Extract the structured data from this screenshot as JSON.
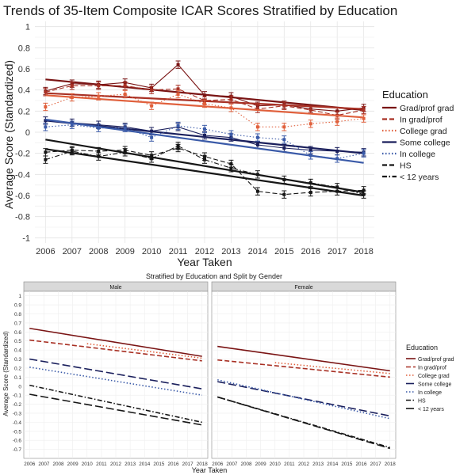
{
  "colors": {
    "grad_prof_grad": "#7a1414",
    "in_grad_prof": "#a83024",
    "college_grad": "#e0603c",
    "some_college": "#1a1f5c",
    "in_college": "#3a5aa8",
    "hs": "#161616",
    "lt12": "#161616"
  },
  "chart_data": [
    {
      "type": "line",
      "title": "Trends of 35-Item Composite ICAR Scores Stratified by Education",
      "xlabel": "Year Taken",
      "ylabel": "Average Score (Standardized)",
      "x": [
        2006,
        2007,
        2008,
        2009,
        2010,
        2011,
        2012,
        2013,
        2014,
        2015,
        2016,
        2017,
        2018
      ],
      "xlim": [
        2005.6,
        2018.4
      ],
      "ylim": [
        -1.05,
        1.05
      ],
      "yticks": [
        1,
        0.8,
        0.6,
        0.4,
        0.2,
        0,
        -0.2,
        -0.4,
        -0.6,
        -0.8,
        -1
      ],
      "yticklabels": [
        "1",
        "0.8",
        "0.6",
        "0.4",
        "0.2",
        "0",
        "-0.2",
        "-0.4",
        "-0.6",
        "-0.8",
        "-1"
      ],
      "grid": true,
      "legend": {
        "title": "Education",
        "position": "right",
        "entries": [
          "Grad/prof grad",
          "In grad/prof",
          "College grad",
          "Some college",
          "In college",
          "HS",
          "< 12 years"
        ]
      },
      "series": [
        {
          "name": "Grad/prof grad",
          "color_key": "grad_prof_grad",
          "dash": "solid",
          "values": [
            0.39,
            0.46,
            0.45,
            0.47,
            0.42,
            0.64,
            0.35,
            0.34,
            0.25,
            0.26,
            0.22,
            0.2,
            0.23
          ],
          "trend": [
            0.5,
            0.21
          ]
        },
        {
          "name": "In grad/prof",
          "color_key": "in_grad_prof",
          "dash": "dashed",
          "values": [
            0.38,
            0.44,
            0.44,
            0.44,
            0.4,
            0.41,
            0.3,
            0.31,
            0.22,
            0.25,
            0.21,
            0.16,
            0.21
          ],
          "trend": [
            0.37,
            0.22
          ]
        },
        {
          "name": "College grad",
          "color_key": "college_grad",
          "dash": "dotted",
          "values": [
            0.24,
            0.33,
            0.34,
            0.36,
            0.25,
            0.36,
            0.27,
            0.23,
            0.05,
            0.05,
            0.08,
            0.1,
            0.13
          ],
          "trend": [
            0.35,
            0.14
          ]
        },
        {
          "name": "Some college",
          "color_key": "some_college",
          "dash": "solid",
          "values": [
            0.11,
            0.09,
            0.07,
            0.05,
            0.01,
            0.05,
            -0.03,
            -0.05,
            -0.12,
            -0.15,
            -0.17,
            -0.18,
            -0.19
          ],
          "trend": [
            0.11,
            -0.2
          ]
        },
        {
          "name": "In college",
          "color_key": "in_college",
          "dash": "dotted",
          "values": [
            0.05,
            0.07,
            0.04,
            0.04,
            -0.05,
            0.06,
            0.03,
            -0.02,
            -0.05,
            -0.07,
            -0.22,
            -0.25,
            -0.2
          ],
          "trend": [
            0.12,
            -0.29
          ]
        },
        {
          "name": "HS",
          "color_key": "hs",
          "dash": "dashed",
          "values": [
            -0.19,
            -0.17,
            -0.18,
            -0.17,
            -0.22,
            -0.15,
            -0.23,
            -0.3,
            -0.56,
            -0.59,
            -0.57,
            -0.56,
            -0.55
          ],
          "trend": [
            -0.16,
            -0.6
          ]
        },
        {
          "name": "< 12 years",
          "color_key": "lt12",
          "dash": "dashdot",
          "values": [
            -0.26,
            -0.18,
            -0.23,
            -0.19,
            -0.25,
            -0.13,
            -0.26,
            -0.34,
            -0.4,
            -0.45,
            -0.48,
            -0.52,
            -0.59
          ],
          "trend": [
            -0.07,
            -0.57
          ]
        }
      ]
    },
    {
      "type": "line",
      "title": "Stratified by Education and Split by Gender",
      "xlabel": "Year Taken",
      "ylabel": "Average Score (Standardized)",
      "x": [
        2006,
        2007,
        2008,
        2009,
        2010,
        2011,
        2012,
        2013,
        2014,
        2015,
        2016,
        2017,
        2018
      ],
      "xlim": [
        2005.6,
        2018.4
      ],
      "ylim": [
        -0.8,
        1.05
      ],
      "yticks": [
        1,
        0.9,
        0.8,
        0.7,
        0.6,
        0.5,
        0.4,
        0.3,
        0.2,
        0.1,
        0,
        -0.1,
        -0.2,
        -0.3,
        -0.4,
        -0.5,
        -0.6,
        -0.7
      ],
      "yticklabels": [
        "1",
        "0.9",
        "0.8",
        "0.7",
        "0.6",
        "0.5",
        "0.4",
        "0.3",
        "0.2",
        "0.1",
        "0",
        "-0.1",
        "-0.2",
        "-0.3",
        "-0.4",
        "-0.5",
        "-0.6",
        "-0.7"
      ],
      "grid": true,
      "legend": {
        "title": "Education",
        "position": "right",
        "entries": [
          "Grad/prof grad",
          "In grad/prof",
          "College grad",
          "Some college",
          "In college",
          "HS",
          "< 12 years"
        ]
      },
      "panels": [
        {
          "label": "Male",
          "series": [
            {
              "name": "Grad/prof grad",
              "color_key": "grad_prof_grad",
              "dash": "solid",
              "x": [
                2006,
                2018
              ],
              "values": [
                0.64,
                0.33
              ]
            },
            {
              "name": "In grad/prof",
              "color_key": "in_grad_prof",
              "dash": "dashed",
              "x": [
                2006,
                2018
              ],
              "values": [
                0.51,
                0.28
              ]
            },
            {
              "name": "College grad",
              "color_key": "college_grad",
              "dash": "dotted",
              "x": [
                2010,
                2018
              ],
              "values": [
                0.47,
                0.31
              ]
            },
            {
              "name": "Some college",
              "color_key": "some_college",
              "dash": "longdash",
              "x": [
                2006,
                2018
              ],
              "values": [
                0.3,
                -0.03
              ]
            },
            {
              "name": "In college",
              "color_key": "in_college",
              "dash": "dotted",
              "x": [
                2006,
                2018
              ],
              "values": [
                0.21,
                -0.1
              ]
            },
            {
              "name": "HS",
              "color_key": "hs",
              "dash": "dashdot",
              "x": [
                2006,
                2018
              ],
              "values": [
                0.01,
                -0.4
              ]
            },
            {
              "name": "< 12 years",
              "color_key": "lt12",
              "dash": "longdash",
              "x": [
                2006,
                2018
              ],
              "values": [
                -0.09,
                -0.43
              ]
            }
          ]
        },
        {
          "label": "Female",
          "series": [
            {
              "name": "Grad/prof grad",
              "color_key": "grad_prof_grad",
              "dash": "solid",
              "x": [
                2006,
                2018
              ],
              "values": [
                0.44,
                0.17
              ]
            },
            {
              "name": "In grad/prof",
              "color_key": "in_grad_prof",
              "dash": "dashed",
              "x": [
                2006,
                2018
              ],
              "values": [
                0.29,
                0.1
              ]
            },
            {
              "name": "College grad",
              "color_key": "college_grad",
              "dash": "dotted",
              "x": [
                2010,
                2018
              ],
              "values": [
                0.26,
                0.14
              ]
            },
            {
              "name": "Some college",
              "color_key": "some_college",
              "dash": "longdash",
              "x": [
                2006,
                2018
              ],
              "values": [
                0.05,
                -0.33
              ]
            },
            {
              "name": "In college",
              "color_key": "in_college",
              "dash": "dotted",
              "x": [
                2006,
                2018
              ],
              "values": [
                0.07,
                -0.36
              ]
            },
            {
              "name": "HS",
              "color_key": "hs",
              "dash": "dashdot",
              "x": [
                2006,
                2018
              ],
              "values": [
                -0.12,
                -0.68
              ]
            },
            {
              "name": "< 12 years",
              "color_key": "lt12",
              "dash": "longdash",
              "x": [
                2006,
                2018
              ],
              "values": [
                -0.12,
                -0.69
              ]
            }
          ]
        }
      ]
    }
  ]
}
